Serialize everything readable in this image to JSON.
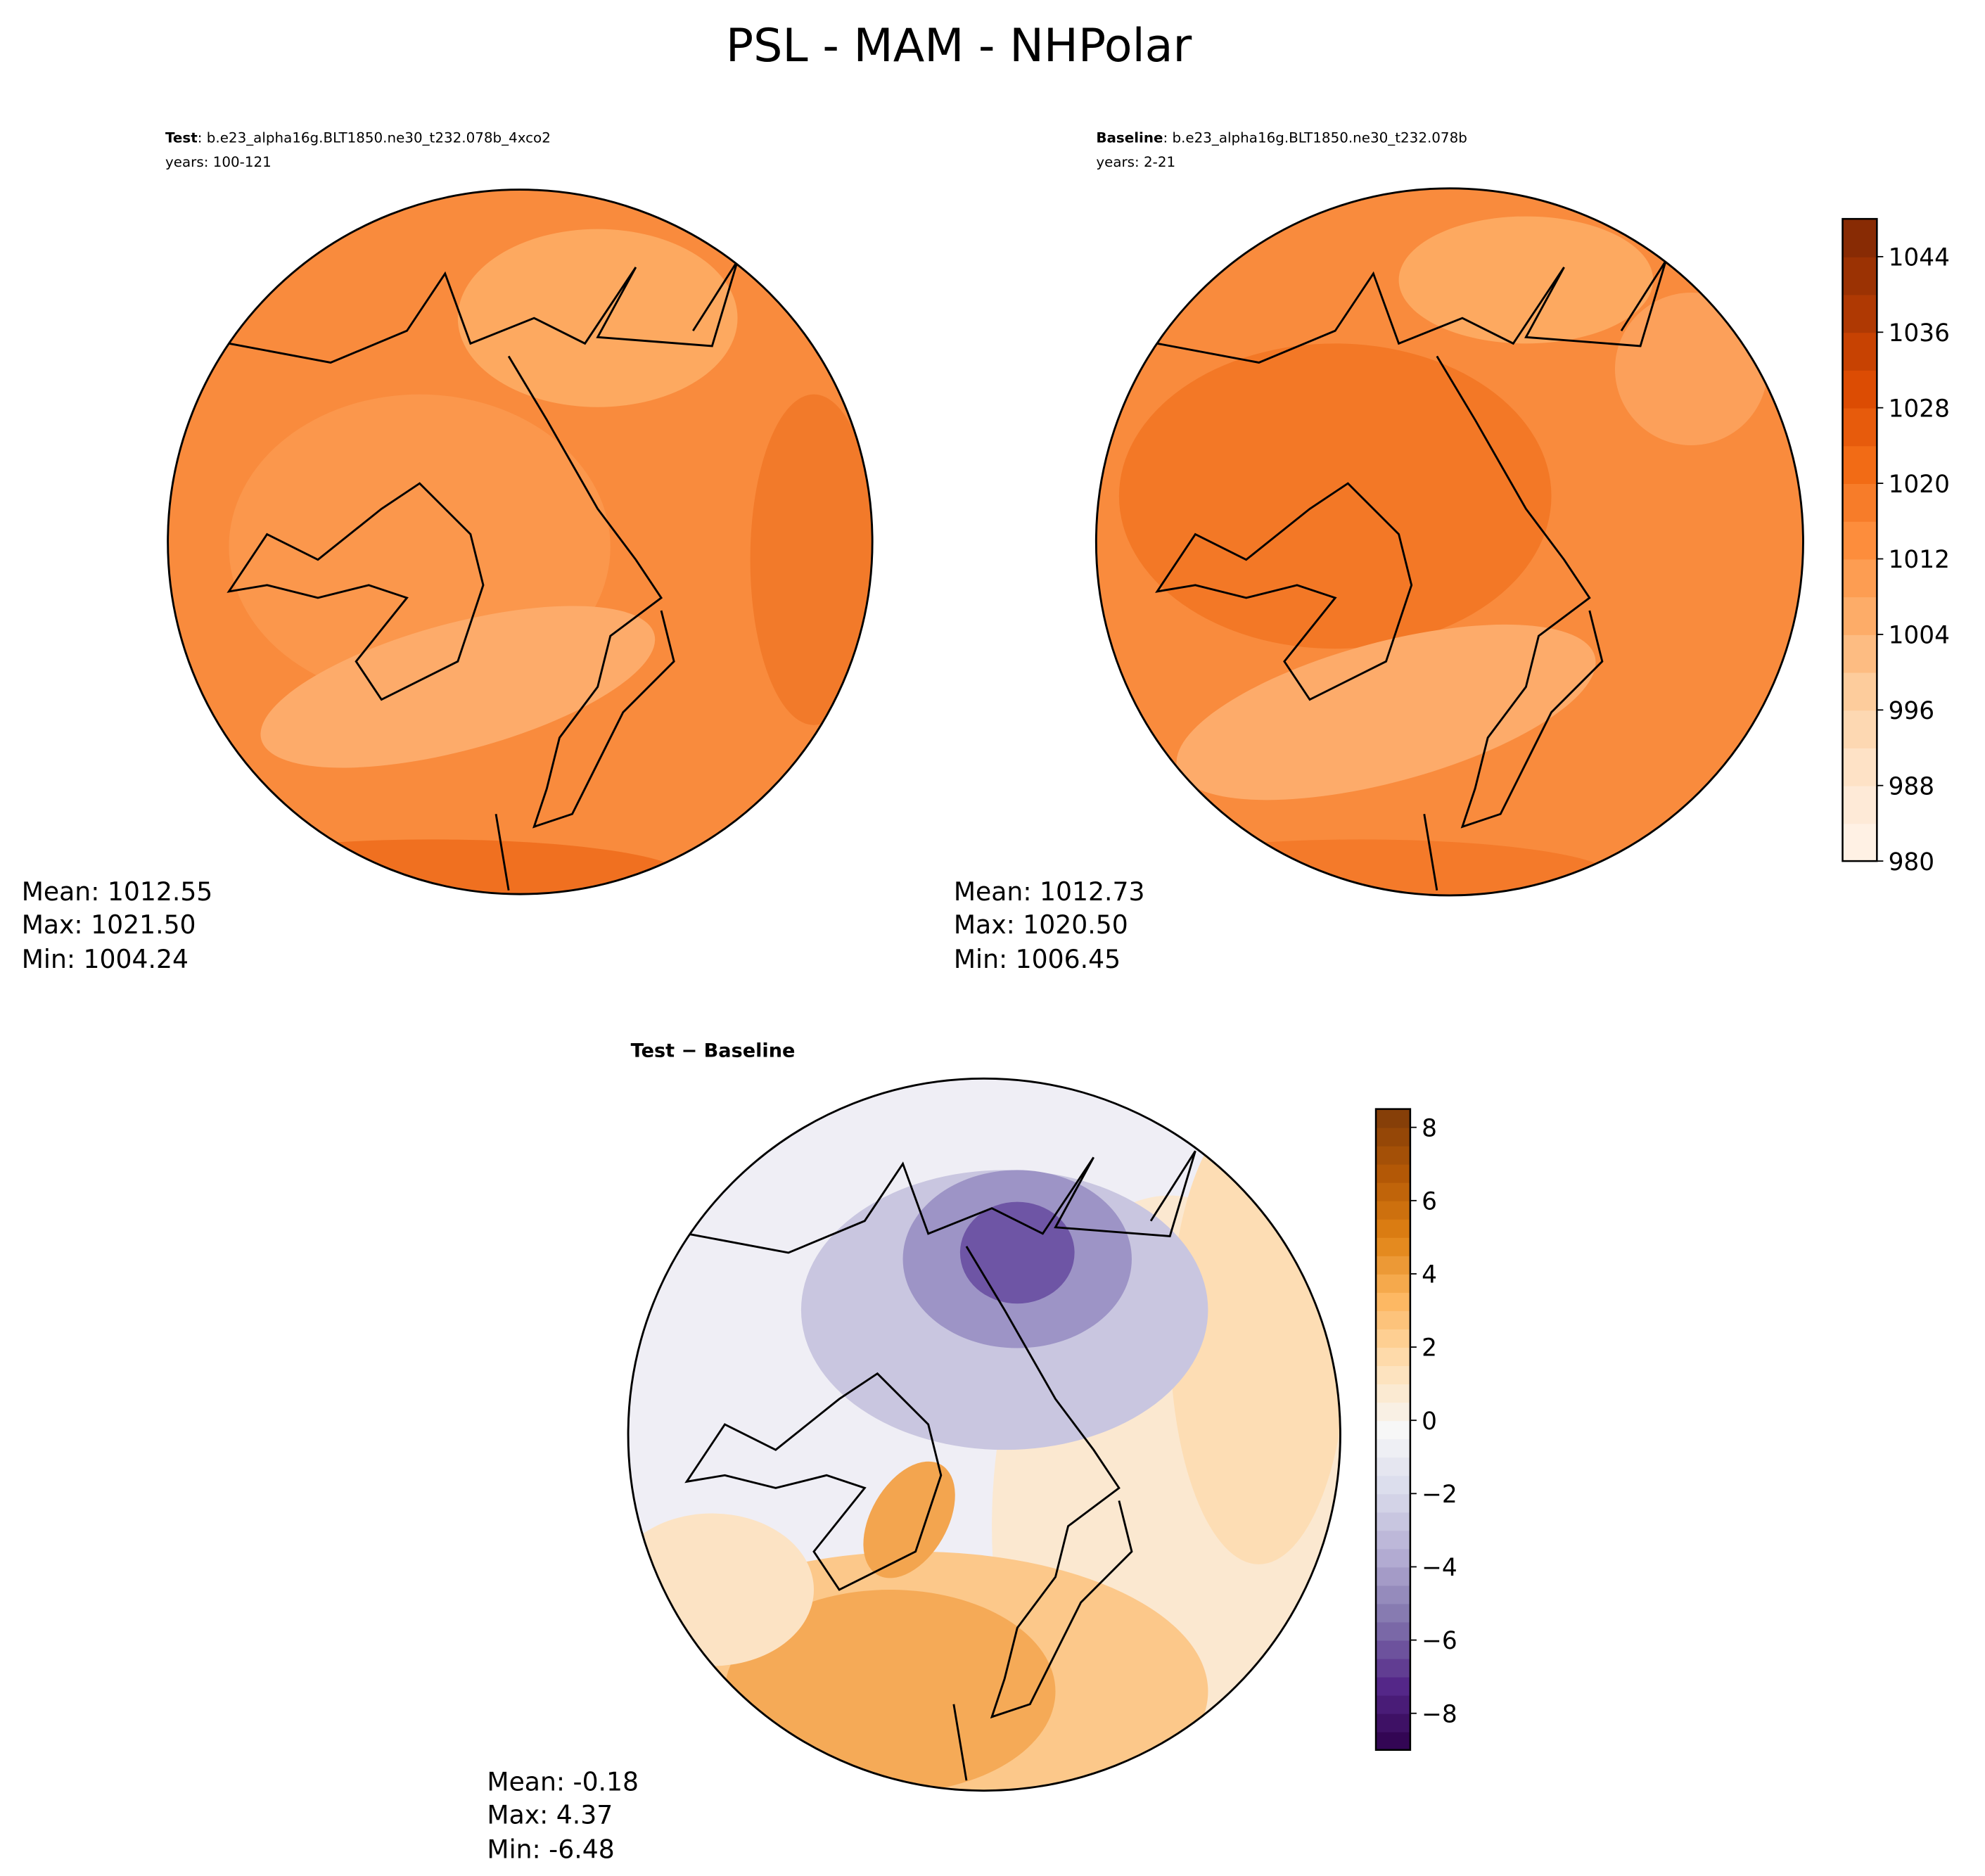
{
  "title": "PSL - MAM - NHPolar",
  "panels": [
    {
      "case_label": "Test",
      "case": ": b.e23_alpha16g.BLT1850.ne30_t232.078b_4xco2",
      "years": "years: 100-121",
      "stats": [
        "Mean: 1012.55",
        "Max: 1021.50",
        "Min: 1004.24"
      ]
    },
    {
      "case_label": "Baseline",
      "case": ": b.e23_alpha16g.BLT1850.ne30_t232.078b",
      "years": "years: 2-21",
      "stats": [
        "Mean: 1012.73",
        "Max: 1020.50",
        "Min: 1006.45"
      ]
    },
    {
      "title": "Test − Baseline",
      "stats": [
        "Mean: -0.18",
        "Max:  4.37",
        "Min: -6.48"
      ]
    }
  ],
  "colorbars": [
    {
      "lim": [
        980,
        1048
      ],
      "ticks": [
        980,
        988,
        996,
        1004,
        1012,
        1020,
        1028,
        1036,
        1044
      ],
      "colors": [
        "#fff5eb",
        "#fee6ce",
        "#fdd0a2",
        "#fdae6b",
        "#fd8d3c",
        "#f16913",
        "#d94801",
        "#a63603",
        "#7f2704"
      ]
    },
    {
      "lim": [
        -9,
        8.5
      ],
      "ticks": [
        {
          "value": -8,
          "label": "−8"
        },
        {
          "value": -6,
          "label": "−6"
        },
        {
          "value": -4,
          "label": "−4"
        },
        {
          "value": -2,
          "label": "−2"
        },
        0,
        2,
        4,
        6,
        8
      ],
      "colors": [
        "#2d004b",
        "#542788",
        "#8073ac",
        "#b2abd2",
        "#d8daeb",
        "#f7f7f7",
        "#fee0b6",
        "#fdb863",
        "#e08214",
        "#b35806",
        "#7f3b08"
      ]
    }
  ]
}
